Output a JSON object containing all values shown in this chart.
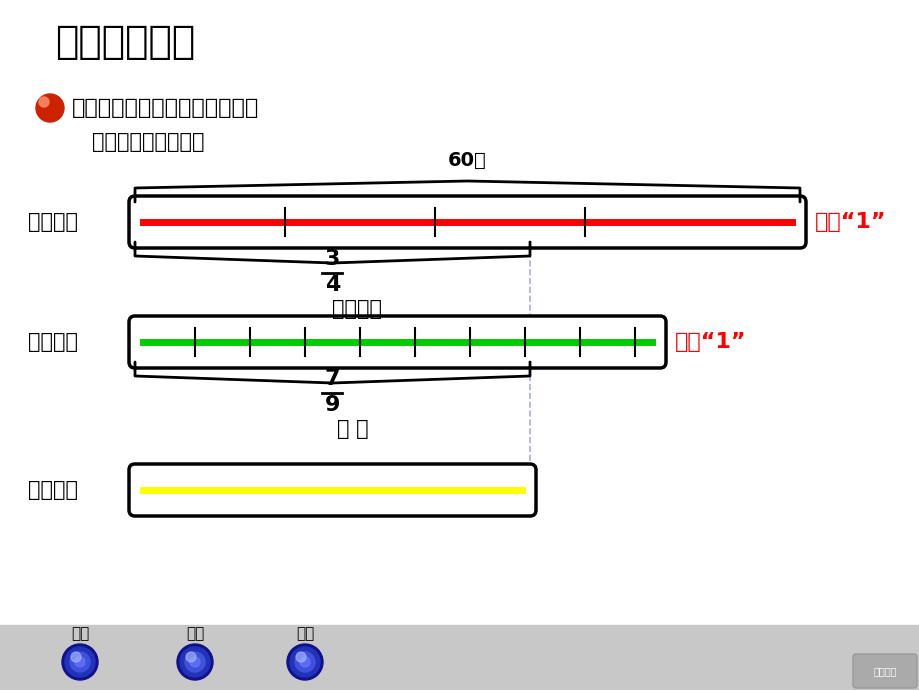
{
  "title": "二、合作探索",
  "question": "做一个黄沙包需要多少克玉米？",
  "sub_label": "画图分析数量关系：",
  "bg_color": "#ffffff",
  "red_label": "红沙包：",
  "green_label": "綠沙包：",
  "yellow_label": "黄沙包：",
  "unit1_text": "单位“1”",
  "unit2_text": "单位“1”",
  "label_60": "60克",
  "label_34_num": "3",
  "label_34_den": "4",
  "label_paren": "（　）克",
  "label_79_num": "7",
  "label_79_den": "9",
  "label_question": "？ 克",
  "red_bar_color": "#ff0000",
  "green_bar_color": "#00cc00",
  "yellow_bar_color": "#ffff00",
  "unit_text_color": "#ff0000",
  "button_labels": [
    "分步",
    "综合",
    "继续"
  ],
  "button_color": "#2222aa",
  "bottom_bg": "#c0c0c0"
}
